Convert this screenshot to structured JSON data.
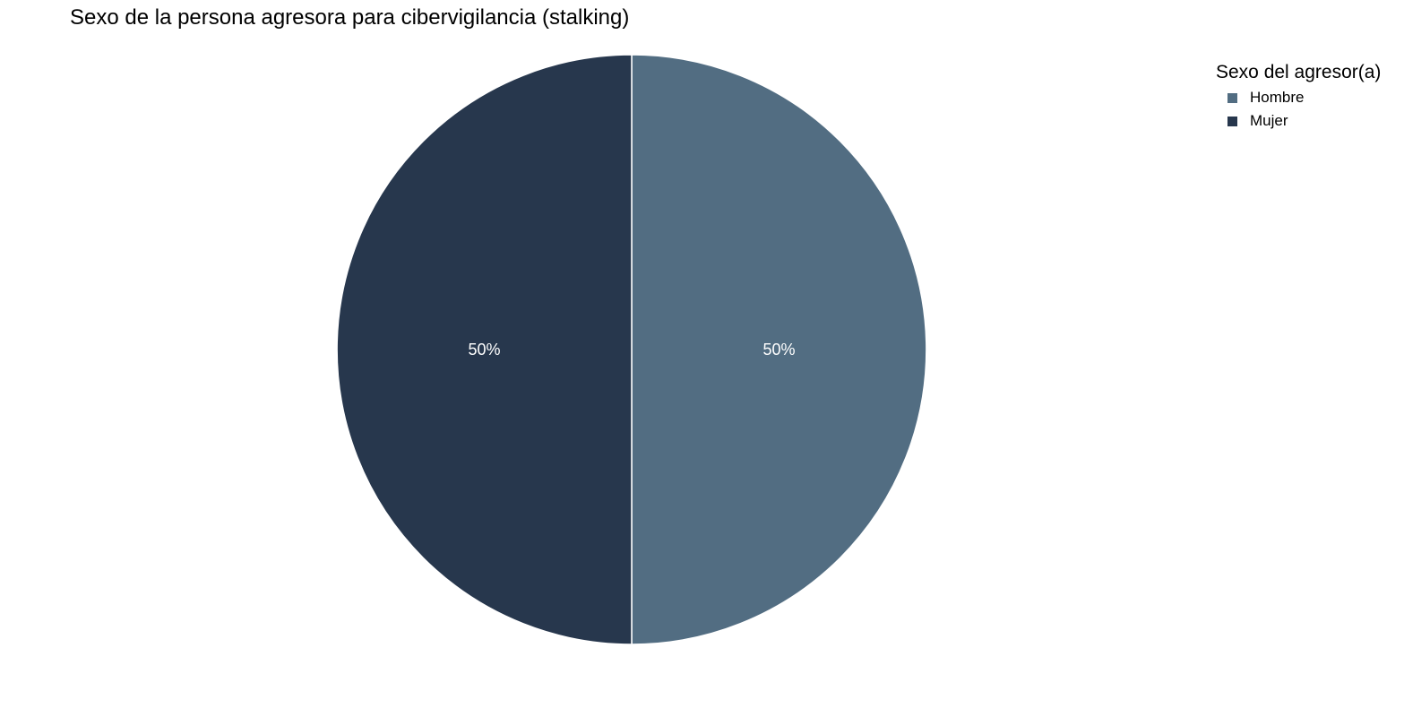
{
  "chart_data": {
    "type": "pie",
    "title": "Sexo de la persona agresora para cibervigilancia (stalking)",
    "legend_title": "Sexo del agresor(a)",
    "legend_position": "top-right",
    "slices": [
      {
        "label": "Hombre",
        "value": 50,
        "value_label": "50%",
        "color": "#526d82"
      },
      {
        "label": "Mujer",
        "value": 50,
        "value_label": "50%",
        "color": "#27374d"
      }
    ]
  }
}
